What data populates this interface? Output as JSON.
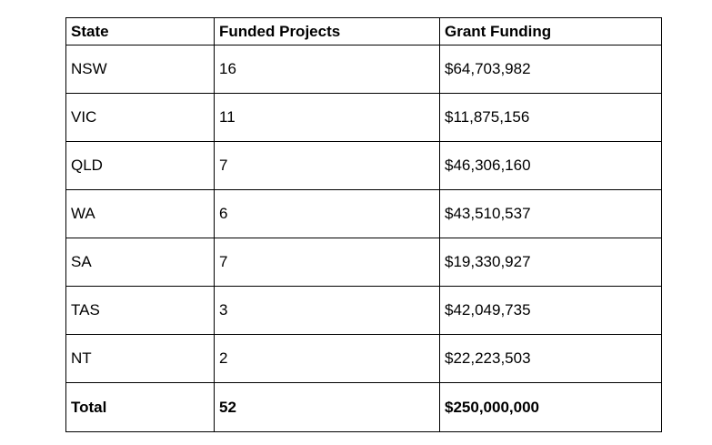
{
  "table": {
    "title": "grant-funding-by-state",
    "headers": {
      "state": "State",
      "projects": "Funded Projects",
      "funding": "Grant Funding"
    },
    "rows": [
      {
        "state": "NSW",
        "projects": "16",
        "funding": "$64,703,982"
      },
      {
        "state": "VIC",
        "projects": "11",
        "funding": "$11,875,156"
      },
      {
        "state": "QLD",
        "projects": "7",
        "funding": "$46,306,160"
      },
      {
        "state": "WA",
        "projects": "6",
        "funding": "$43,510,537"
      },
      {
        "state": "SA",
        "projects": "7",
        "funding": "$19,330,927"
      },
      {
        "state": "TAS",
        "projects": "3",
        "funding": "$42,049,735"
      },
      {
        "state": "NT",
        "projects": "2",
        "funding": "$22,223,503"
      }
    ],
    "total": {
      "state": "Total",
      "projects": "52",
      "funding": "$250,000,000"
    },
    "colors": {
      "border": "#000000",
      "text": "#000000",
      "background": "#ffffff"
    }
  }
}
